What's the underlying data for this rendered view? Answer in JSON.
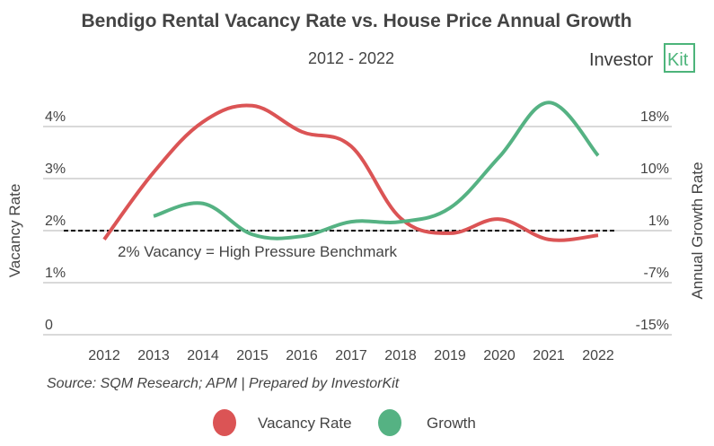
{
  "chart_data": {
    "type": "line",
    "title": "Bendigo Rental Vacancy Rate vs. House Price Annual Growth",
    "subtitle": "2012 - 2022",
    "brand": {
      "text_main": "Investor",
      "text_boxed": "Kit",
      "color": "#4cb47a"
    },
    "x": [
      "2012",
      "2013",
      "2014",
      "2015",
      "2016",
      "2017",
      "2018",
      "2019",
      "2020",
      "2021",
      "2022"
    ],
    "y_left": {
      "label": "Vacancy Rate",
      "ticks": [
        "4%",
        "3%",
        "2%",
        "1%",
        "0"
      ],
      "ylim": [
        0,
        4
      ]
    },
    "y_right": {
      "label": "Annual Growth Rate",
      "ticks": [
        "18%",
        "10%",
        "1%",
        "-7%",
        "-15%"
      ],
      "ylim": [
        -15,
        18
      ]
    },
    "series": [
      {
        "name": "Vacancy Rate",
        "axis": "left",
        "color": "#db5455",
        "values": [
          1.83,
          3.12,
          4.09,
          4.4,
          3.9,
          3.62,
          2.24,
          1.95,
          2.22,
          1.83,
          1.91
        ]
      },
      {
        "name": "Growth",
        "axis": "right",
        "color": "#55b283",
        "values": [
          null,
          3.8,
          5.8,
          0.9,
          0.6,
          2.9,
          2.9,
          5.1,
          13.2,
          21.8,
          13.4
        ]
      }
    ],
    "benchmark": {
      "value": 2,
      "axis": "left",
      "label": "2% Vacancy = High Pressure Benchmark",
      "style": "dashed",
      "color": "#000000"
    },
    "grid": true,
    "legend_position": "bottom",
    "source": "Source: SQM Research; APM | Prepared by InvestorKit"
  }
}
